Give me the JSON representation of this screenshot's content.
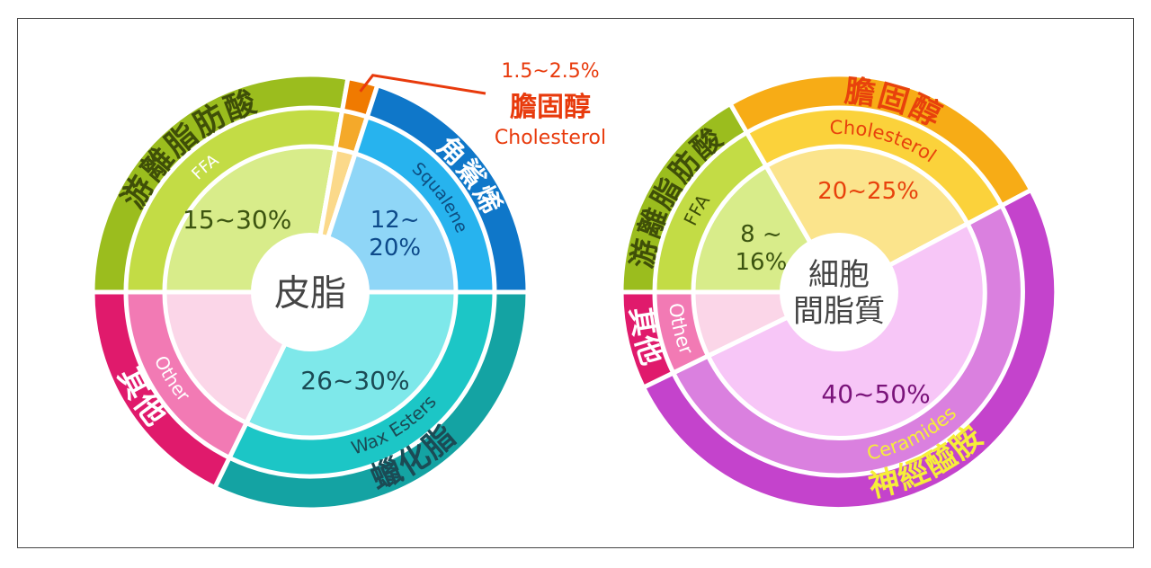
{
  "chart_data": [
    {
      "type": "pie",
      "title": "皮脂",
      "slices": [
        {
          "cn": "游離脂肪酸",
          "en": "FFA",
          "value": "15~30%",
          "colors": {
            "outer": "#9bbd1e",
            "mid": "#c3dc45",
            "inner": "#d8ec8a",
            "cn": "#3f4f08",
            "en": "#ffffff",
            "value": "#3c5410"
          }
        },
        {
          "cn": "膽固醇",
          "en": "Cholesterol",
          "value": "1.5~2.5%",
          "colors": {
            "outer": "#f07a00",
            "mid": "#f4a92a",
            "inner": "#fbd98a",
            "cn": "#e83a0c",
            "en": "#e83a0c",
            "value": "#e83a0c"
          }
        },
        {
          "cn": "角鯊烯",
          "en": "Squalene",
          "value": "12~\n20%",
          "colors": {
            "outer": "#0f77c9",
            "mid": "#27b3ee",
            "inner": "#8fd6f7",
            "cn": "#ffffff",
            "en": "#0d4d80",
            "value": "#0d4a8a"
          }
        },
        {
          "cn": "蠟化脂",
          "en": "Wax Esters",
          "value": "26~30%",
          "colors": {
            "outer": "#14a3a3",
            "mid": "#1cc6c6",
            "inner": "#7ee8ea",
            "cn": "#1b4b55",
            "en": "#1b4b55",
            "value": "#1b4b55"
          }
        },
        {
          "cn": "其他",
          "en": "Other",
          "value": "",
          "colors": {
            "outer": "#e01a6c",
            "mid": "#f27ab4",
            "inner": "#fbd6e8",
            "cn": "#ffffff",
            "en": "#ffffff",
            "value": "#a0245e"
          }
        }
      ]
    },
    {
      "type": "pie",
      "title": "細胞\n間脂質",
      "slices": [
        {
          "cn": "游離脂肪酸",
          "en": "FFA",
          "value": "8 ~\n16%",
          "colors": {
            "outer": "#9bbd1e",
            "mid": "#c3dc45",
            "inner": "#d8ec8a",
            "cn": "#3f4f08",
            "en": "#3f4f08",
            "value": "#3c5410"
          }
        },
        {
          "cn": "膽固醇",
          "en": "Cholesterol",
          "value": "20~25%",
          "colors": {
            "outer": "#f7ac16",
            "mid": "#fbd23b",
            "inner": "#fbe48c",
            "cn": "#e8420c",
            "en": "#e8420c",
            "value": "#e8420c"
          }
        },
        {
          "cn": "神經醯胺",
          "en": "Ceramides",
          "value": "40~50%",
          "colors": {
            "outer": "#c443cc",
            "mid": "#da80df",
            "inner": "#f7c6f7",
            "cn": "#f6ef39",
            "en": "#f6ef39",
            "value": "#7a137a"
          }
        },
        {
          "cn": "其他",
          "en": "Other",
          "value": "",
          "colors": {
            "outer": "#e01a6c",
            "mid": "#f27ab4",
            "inner": "#fbd6e8",
            "cn": "#ffffff",
            "en": "#ffffff",
            "value": "#a0245e"
          }
        }
      ]
    }
  ]
}
